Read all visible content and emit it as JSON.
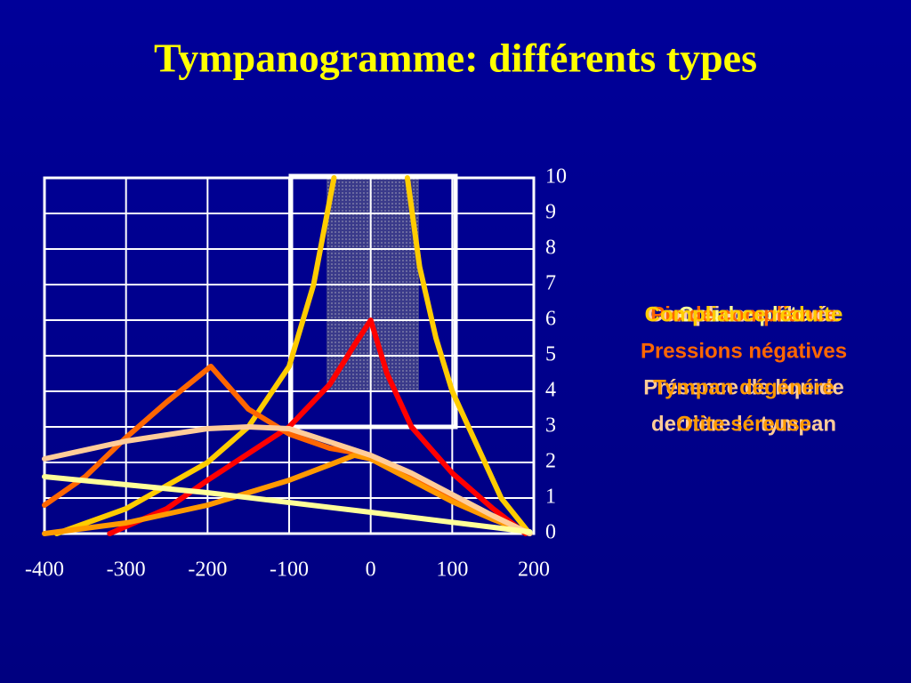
{
  "chart_data": {
    "type": "line",
    "title": "Tympanogramme: différents types",
    "xlim": [
      -400,
      200
    ],
    "xticks": [
      -400,
      -300,
      -200,
      -100,
      0,
      100,
      200
    ],
    "ylim": [
      0,
      10
    ],
    "yticks": [
      0,
      1,
      2,
      3,
      4,
      5,
      6,
      7,
      8,
      9,
      10
    ],
    "grid": true,
    "series": [
      {
        "color": "#ffcc00",
        "x": [
          -385,
          -300,
          -200,
          -150,
          -100,
          -70,
          -45,
          null,
          45,
          60,
          80,
          100,
          130,
          160,
          195
        ],
        "values": [
          0,
          0.7,
          2,
          3,
          4.7,
          7,
          10,
          null,
          10,
          7.5,
          5.5,
          4,
          2.5,
          1,
          0
        ]
      },
      {
        "color": "#ff0000",
        "x": [
          -320,
          -250,
          -200,
          -100,
          -50,
          -20,
          0,
          20,
          50,
          100,
          150,
          190
        ],
        "values": [
          0,
          0.7,
          1.5,
          3,
          4.2,
          5.3,
          6,
          4.5,
          3,
          1.7,
          0.7,
          0
        ]
      },
      {
        "color": "#ff6600",
        "x": [
          -400,
          -350,
          -300,
          -250,
          -196,
          -150,
          -100,
          -50,
          0,
          50,
          100,
          150,
          195
        ],
        "values": [
          0.8,
          1.6,
          2.7,
          3.7,
          4.7,
          3.5,
          2.8,
          2.4,
          2.2,
          1.6,
          1,
          0.5,
          0
        ]
      },
      {
        "color": "#ff9900",
        "x": [
          -400,
          -300,
          -200,
          -100,
          -20,
          0,
          50,
          100,
          150,
          195
        ],
        "values": [
          0,
          0.3,
          0.8,
          1.5,
          2.2,
          2.1,
          1.5,
          0.9,
          0.4,
          0
        ]
      },
      {
        "color": "#ffcc99",
        "x": [
          -400,
          -300,
          -200,
          -150,
          -100,
          0,
          50,
          100,
          150,
          195
        ],
        "values": [
          2.1,
          2.6,
          2.95,
          3,
          2.95,
          2.2,
          1.7,
          1.1,
          0.5,
          0
        ]
      },
      {
        "color": "#ffff99",
        "x": [
          -400,
          -200,
          0,
          195
        ],
        "values": [
          1.6,
          1.15,
          0.6,
          0.05
        ]
      }
    ],
    "annotations": [
      {
        "lines": [
          "Compliance élevée"
        ],
        "color": "#ffccaa"
      },
      {
        "lines": [
          "Courbe plate"
        ],
        "color": "#ffff99"
      },
      {
        "lines": [
          "Pic de compliance",
          "Pressions négatives"
        ],
        "color": "#ff6600"
      },
      {
        "lines": [
          "Présence de liquide",
          "derrière le tympan"
        ],
        "color": "#ffcc99"
      },
      {
        "lines": [
          "Tympan dégénéré",
          "Otite séreuse"
        ],
        "color": "#ff9900"
      },
      {
        "lines": [
          "Compliance réduite"
        ],
        "color": "#ffcc00"
      }
    ]
  }
}
